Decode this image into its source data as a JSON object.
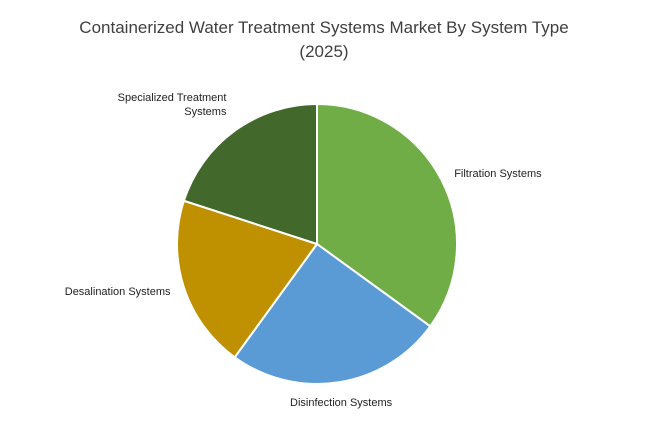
{
  "chart_data": {
    "type": "pie",
    "title": "Containerized Water Treatment Systems Market By System Type (2025)",
    "categories": [
      "Filtration Systems",
      "Disinfection Systems",
      "Desalination Systems",
      "Specialized Treatment Systems"
    ],
    "values": [
      35,
      25,
      20,
      20
    ],
    "colors": [
      "#70ad47",
      "#5b9bd5",
      "#bf9000",
      "#43682b"
    ]
  }
}
